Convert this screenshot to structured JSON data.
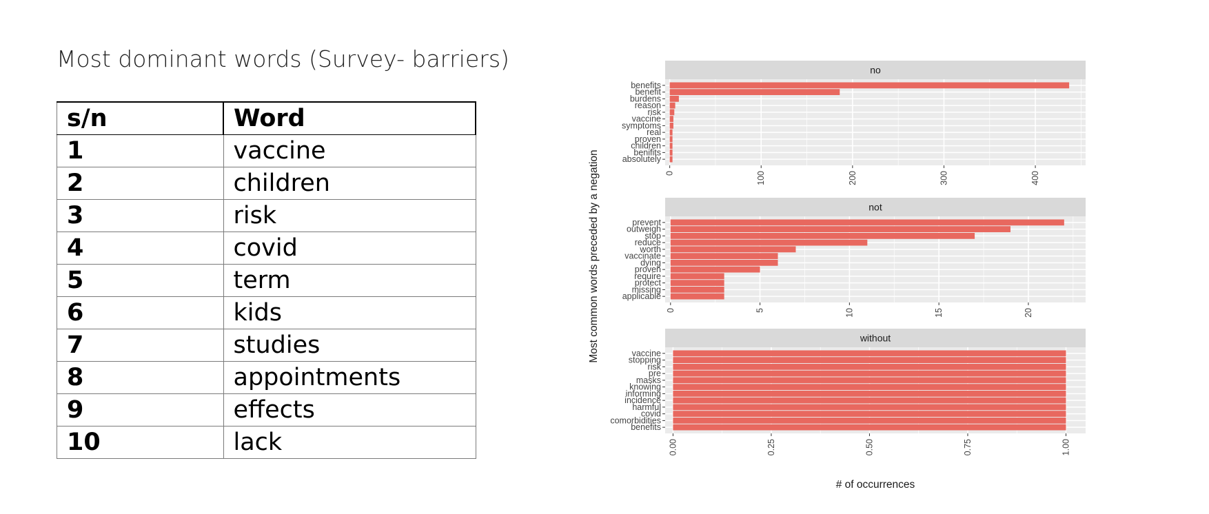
{
  "slide": {
    "title": "Most dominant words (Survey- barriers)"
  },
  "table": {
    "headers": [
      "s/n",
      "Word"
    ],
    "rows": [
      [
        "1",
        "vaccine"
      ],
      [
        "2",
        "children"
      ],
      [
        "3",
        "risk"
      ],
      [
        "4",
        "covid"
      ],
      [
        "5",
        "term"
      ],
      [
        "6",
        "kids"
      ],
      [
        "7",
        "studies"
      ],
      [
        "8",
        "appointments"
      ],
      [
        "9",
        "effects"
      ],
      [
        "10",
        "lack"
      ]
    ]
  },
  "chart_data": {
    "type": "bar",
    "orientation": "horizontal",
    "faceted": true,
    "ylabel": "Most common words preceded by a negation",
    "xlabel": "# of occurrences",
    "bar_color": "#e8685f",
    "panel_bg": "#ebebeb",
    "strip_bg": "#d9d9d9",
    "panels": [
      {
        "facet": "no",
        "categories": [
          "benefits",
          "benefit",
          "burdens",
          "reason",
          "risk",
          "vaccine",
          "symptoms",
          "real",
          "proven",
          "children",
          "benifits",
          "absolutely"
        ],
        "values": [
          437,
          186,
          10,
          6,
          5,
          4,
          4,
          3,
          3,
          3,
          3,
          3
        ],
        "xlim": [
          -5,
          455
        ],
        "ticks": [
          0,
          100,
          200,
          300,
          400
        ]
      },
      {
        "facet": "not",
        "categories": [
          "prevent",
          "outweigh",
          "stop",
          "reduce",
          "worth",
          "vaccinate",
          "dying",
          "proven",
          "require",
          "protect",
          "missing",
          "applicable"
        ],
        "values": [
          22,
          19,
          17,
          11,
          7,
          6,
          6,
          5,
          3,
          3,
          3,
          3
        ],
        "xlim": [
          -0.3,
          23.2
        ],
        "ticks": [
          0,
          5,
          10,
          15,
          20
        ]
      },
      {
        "facet": "without",
        "categories": [
          "vaccine",
          "stopping",
          "risk",
          "pre",
          "masks",
          "knowing",
          "informing",
          "incidence",
          "harmful",
          "covid",
          "comorbidities",
          "benefits"
        ],
        "values": [
          1,
          1,
          1,
          1,
          1,
          1,
          1,
          1,
          1,
          1,
          1,
          1
        ],
        "xlim": [
          -0.02,
          1.05
        ],
        "ticks": [
          "0.00",
          "0.25",
          "0.50",
          "0.75",
          "1.00"
        ]
      }
    ]
  }
}
